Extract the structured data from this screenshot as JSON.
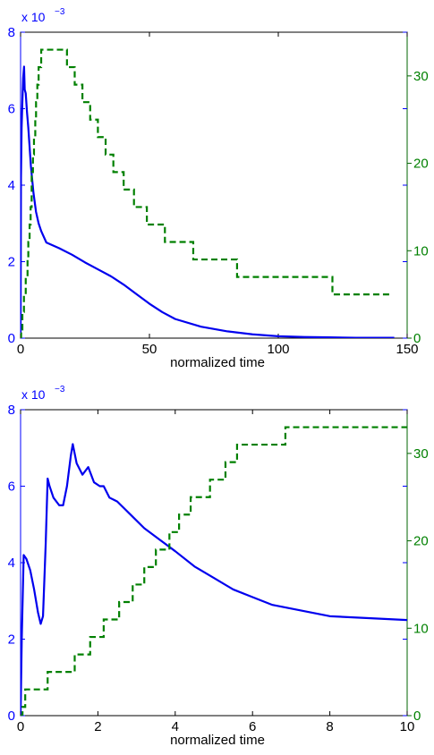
{
  "chart_data": [
    {
      "type": "line",
      "xlabel": "normalized time",
      "xlim": [
        0,
        150
      ],
      "xticks": [
        0,
        50,
        100,
        150
      ],
      "ylim_left": [
        0,
        0.008
      ],
      "yticks_left": [
        0,
        2,
        4,
        6,
        8
      ],
      "y_left_multiplier": {
        "base": "x 10",
        "exponent": "−3"
      },
      "ylim_right": [
        0,
        35
      ],
      "yticks_right": [
        0,
        10,
        20,
        30
      ],
      "left_color": "#0000ee",
      "right_color": "#008000",
      "series": [
        {
          "axis": "left",
          "style": "solid",
          "points": [
            [
              0,
              0
            ],
            [
              0.15,
              0.0042
            ],
            [
              0.4,
              0.0055
            ],
            [
              0.7,
              0.0062
            ],
            [
              1.0,
              0.0068
            ],
            [
              1.35,
              0.0071
            ],
            [
              1.6,
              0.0065
            ],
            [
              2,
              0.0064
            ],
            [
              2.5,
              0.0059
            ],
            [
              3,
              0.0055
            ],
            [
              4,
              0.0045
            ],
            [
              5,
              0.0038
            ],
            [
              6,
              0.0033
            ],
            [
              7,
              0.003
            ],
            [
              8,
              0.0028
            ],
            [
              10,
              0.0025
            ],
            [
              15,
              0.00235
            ],
            [
              20,
              0.00218
            ],
            [
              25,
              0.00198
            ],
            [
              30,
              0.0018
            ],
            [
              35,
              0.00162
            ],
            [
              40,
              0.0014
            ],
            [
              45,
              0.00115
            ],
            [
              50,
              0.0009
            ],
            [
              55,
              0.00068
            ],
            [
              60,
              0.0005
            ],
            [
              70,
              0.0003
            ],
            [
              80,
              0.00018
            ],
            [
              90,
              0.0001
            ],
            [
              100,
              5e-05
            ],
            [
              110,
              3e-05
            ],
            [
              120,
              2e-05
            ],
            [
              130,
              1e-05
            ],
            [
              145,
              1e-05
            ]
          ]
        },
        {
          "axis": "right",
          "style": "dashed",
          "points": [
            [
              0,
              0
            ],
            [
              0.2,
              1
            ],
            [
              0.7,
              3
            ],
            [
              1.3,
              5
            ],
            [
              2,
              7
            ],
            [
              2.7,
              9
            ],
            [
              3,
              11
            ],
            [
              3.5,
              13
            ],
            [
              3.9,
              15
            ],
            [
              4.3,
              19
            ],
            [
              4.8,
              21
            ],
            [
              5.2,
              23
            ],
            [
              5.7,
              25
            ],
            [
              6,
              27
            ],
            [
              6.5,
              29
            ],
            [
              7,
              31
            ],
            [
              8,
              33
            ],
            [
              18,
              33
            ],
            [
              18,
              31
            ],
            [
              21,
              29
            ],
            [
              24,
              27
            ],
            [
              27,
              25
            ],
            [
              30,
              23
            ],
            [
              33,
              21
            ],
            [
              36,
              19
            ],
            [
              40,
              17
            ],
            [
              44,
              15
            ],
            [
              49,
              13
            ],
            [
              56,
              11
            ],
            [
              67,
              9
            ],
            [
              84,
              7
            ],
            [
              121,
              5
            ],
            [
              144,
              5
            ]
          ]
        }
      ]
    },
    {
      "type": "line",
      "xlabel": "normalized time",
      "xlim": [
        0,
        10
      ],
      "xticks": [
        0,
        2,
        4,
        6,
        8,
        10
      ],
      "ylim_left": [
        0,
        0.008
      ],
      "yticks_left": [
        0,
        2,
        4,
        6,
        8
      ],
      "y_left_multiplier": {
        "base": "x 10",
        "exponent": "−3"
      },
      "ylim_right": [
        0,
        35
      ],
      "yticks_right": [
        0,
        10,
        20,
        30
      ],
      "left_color": "#0000ee",
      "right_color": "#008000",
      "series": [
        {
          "axis": "left",
          "style": "solid",
          "points": [
            [
              0,
              0
            ],
            [
              0.03,
              0.002
            ],
            [
              0.08,
              0.0042
            ],
            [
              0.15,
              0.0041
            ],
            [
              0.25,
              0.0038
            ],
            [
              0.35,
              0.0033
            ],
            [
              0.45,
              0.0027
            ],
            [
              0.52,
              0.0024
            ],
            [
              0.58,
              0.0026
            ],
            [
              0.65,
              0.0045
            ],
            [
              0.7,
              0.0062
            ],
            [
              0.75,
              0.006
            ],
            [
              0.85,
              0.0057
            ],
            [
              1.0,
              0.0055
            ],
            [
              1.1,
              0.0055
            ],
            [
              1.2,
              0.006
            ],
            [
              1.3,
              0.0068
            ],
            [
              1.35,
              0.0071
            ],
            [
              1.45,
              0.0066
            ],
            [
              1.6,
              0.0063
            ],
            [
              1.75,
              0.0065
            ],
            [
              1.9,
              0.0061
            ],
            [
              2.05,
              0.006
            ],
            [
              2.15,
              0.006
            ],
            [
              2.3,
              0.0057
            ],
            [
              2.5,
              0.0056
            ],
            [
              2.7,
              0.0054
            ],
            [
              2.9,
              0.0052
            ],
            [
              3.2,
              0.0049
            ],
            [
              3.6,
              0.0046
            ],
            [
              4.0,
              0.0043
            ],
            [
              4.5,
              0.0039
            ],
            [
              5,
              0.0036
            ],
            [
              5.5,
              0.0033
            ],
            [
              6,
              0.0031
            ],
            [
              6.5,
              0.0029
            ],
            [
              7,
              0.0028
            ],
            [
              7.5,
              0.0027
            ],
            [
              8,
              0.0026
            ],
            [
              9,
              0.00255
            ],
            [
              10,
              0.0025
            ]
          ]
        },
        {
          "axis": "right",
          "style": "dashed",
          "points": [
            [
              0,
              0
            ],
            [
              0.05,
              1
            ],
            [
              0.12,
              3
            ],
            [
              0.7,
              5
            ],
            [
              1.4,
              7
            ],
            [
              1.8,
              9
            ],
            [
              2.15,
              11
            ],
            [
              2.55,
              13
            ],
            [
              2.9,
              15
            ],
            [
              3.2,
              17
            ],
            [
              3.5,
              19
            ],
            [
              3.85,
              21
            ],
            [
              4.1,
              23
            ],
            [
              4.4,
              25
            ],
            [
              4.9,
              27
            ],
            [
              5.3,
              29
            ],
            [
              5.6,
              31
            ],
            [
              6.85,
              33
            ],
            [
              10,
              33
            ]
          ]
        }
      ]
    }
  ]
}
